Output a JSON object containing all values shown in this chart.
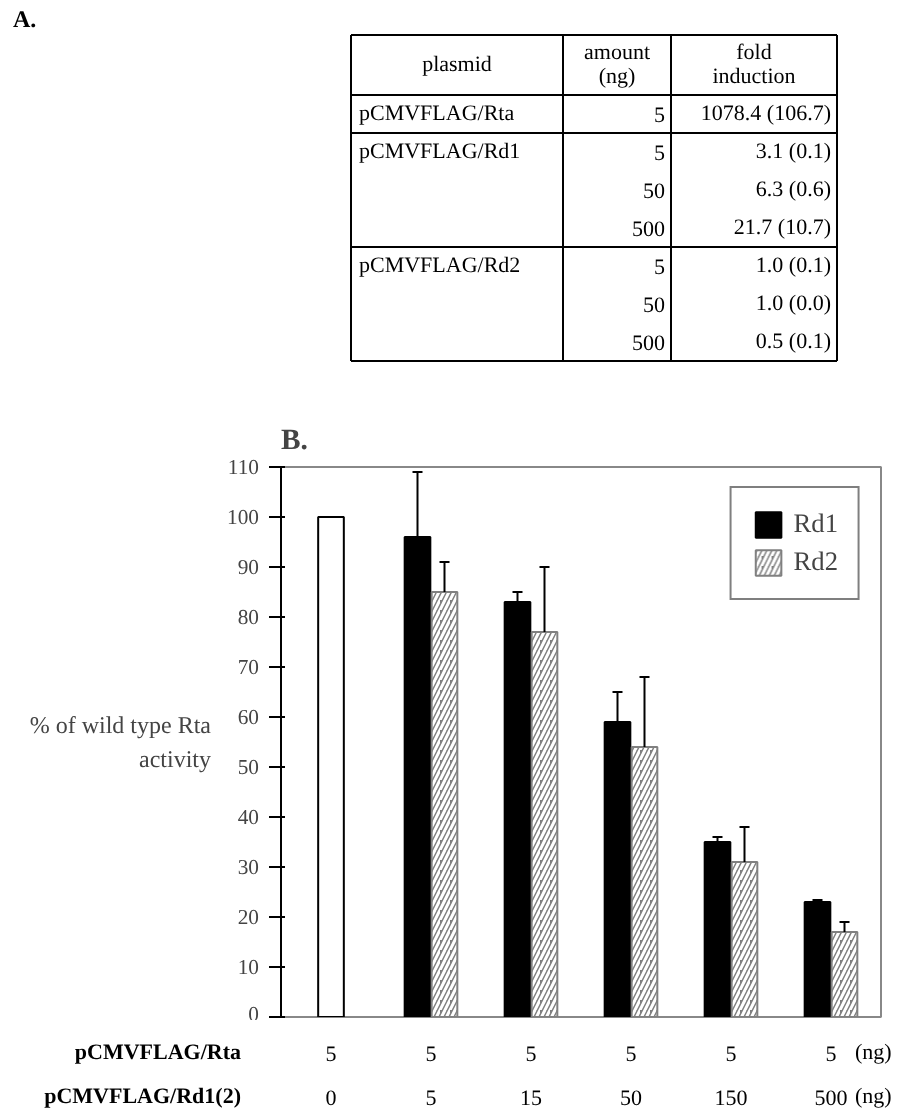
{
  "chart_data": [
    {
      "type": "other",
      "title": "A.",
      "categories": [
        "plasmid",
        "amount\n(ng)",
        "fold\ninduction"
      ],
      "cell_labels": [
        [
          "pCMVFLAG/Rta",
          "5",
          "1078.4 (106.7)"
        ],
        [
          "pCMVFLAG/Rd1",
          "5",
          "3.1 (0.1)"
        ],
        [
          null,
          "50",
          "6.3 (0.6)"
        ],
        [
          null,
          "500",
          "21.7 (10.7)"
        ],
        [
          "pCMVFLAG/Rd2",
          "5",
          "1.0 (0.1)"
        ],
        [
          null,
          "50",
          "1.0 (0.0)"
        ],
        [
          null,
          "500",
          "0.5 (0.1)"
        ]
      ]
    },
    {
      "type": "bar",
      "title": "B.",
      "ylabel": "% of wild type Rta\nactivity",
      "categories": [
        "5\n0",
        "5\n5",
        "5\n15",
        "5\n50",
        "5\n150",
        "5\n500"
      ],
      "annotations": [
        "pCMVFLAG/Rta",
        "pCMVFLAG/Rd1(2)",
        "(ng)",
        "(ng)"
      ],
      "series": [
        {
          "color": "#ffffff",
          "values": [
            100,
            null,
            null,
            null,
            null,
            null
          ]
        },
        {
          "name": "Rd1",
          "color": "#000000",
          "values": [
            null,
            96,
            83,
            59,
            35,
            23
          ],
          "errors": [
            null,
            [
              96,
              109
            ],
            [
              83,
              85
            ],
            [
              59,
              65
            ],
            [
              35,
              36
            ],
            [
              23,
              23.4
            ]
          ]
        },
        {
          "name": "Rd2",
          "color": "#808080",
          "values": [
            null,
            85,
            77,
            54,
            31,
            17
          ],
          "errors": [
            null,
            [
              85,
              91
            ],
            [
              77,
              90
            ],
            [
              54,
              68
            ],
            [
              31,
              38
            ],
            [
              17,
              19
            ]
          ]
        }
      ],
      "ylim": [
        0,
        110
      ],
      "yticks": [
        0,
        10,
        20,
        30,
        40,
        50,
        60,
        70,
        80,
        90,
        100,
        110
      ],
      "grid": false,
      "legend": "top right"
    }
  ]
}
